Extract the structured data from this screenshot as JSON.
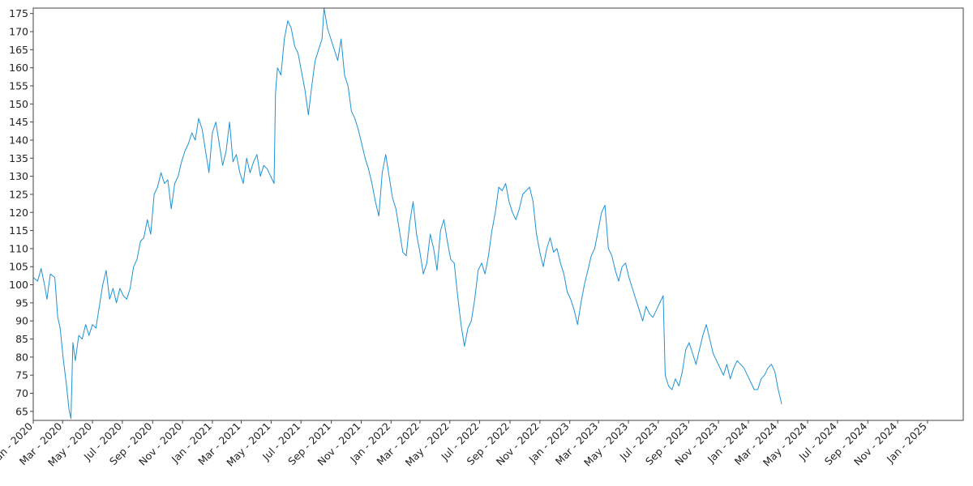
{
  "chart_data": {
    "type": "line",
    "title": "",
    "xlabel": "",
    "ylabel": "",
    "grid": false,
    "legend": "none",
    "xlim": [
      "2020-01-01",
      "2025-03-15"
    ],
    "ylim": [
      62.5,
      176.5
    ],
    "yticks": [
      65,
      70,
      75,
      80,
      85,
      90,
      95,
      100,
      105,
      110,
      115,
      120,
      125,
      130,
      135,
      140,
      145,
      150,
      155,
      160,
      165,
      170,
      175
    ],
    "xticks": [
      {
        "date": "2020-01-01",
        "label": "Jan - 2020"
      },
      {
        "date": "2020-03-01",
        "label": "Mar - 2020"
      },
      {
        "date": "2020-05-01",
        "label": "May - 2020"
      },
      {
        "date": "2020-07-01",
        "label": "Jul - 2020"
      },
      {
        "date": "2020-09-01",
        "label": "Sep - 2020"
      },
      {
        "date": "2020-11-01",
        "label": "Nov - 2020"
      },
      {
        "date": "2021-01-01",
        "label": "Jan - 2021"
      },
      {
        "date": "2021-03-01",
        "label": "Mar - 2021"
      },
      {
        "date": "2021-05-01",
        "label": "May - 2021"
      },
      {
        "date": "2021-07-01",
        "label": "Jul - 2021"
      },
      {
        "date": "2021-09-01",
        "label": "Sep - 2021"
      },
      {
        "date": "2021-11-01",
        "label": "Nov - 2021"
      },
      {
        "date": "2022-01-01",
        "label": "Jan - 2022"
      },
      {
        "date": "2022-03-01",
        "label": "Mar - 2022"
      },
      {
        "date": "2022-05-01",
        "label": "May - 2022"
      },
      {
        "date": "2022-07-01",
        "label": "Jul - 2022"
      },
      {
        "date": "2022-09-01",
        "label": "Sep - 2022"
      },
      {
        "date": "2022-11-01",
        "label": "Nov - 2022"
      },
      {
        "date": "2023-01-01",
        "label": "Jan - 2023"
      },
      {
        "date": "2023-03-01",
        "label": "Mar - 2023"
      },
      {
        "date": "2023-05-01",
        "label": "May - 2023"
      },
      {
        "date": "2023-07-01",
        "label": "Jul - 2023"
      },
      {
        "date": "2023-09-01",
        "label": "Sep - 2023"
      },
      {
        "date": "2023-11-01",
        "label": "Nov - 2023"
      },
      {
        "date": "2024-01-01",
        "label": "Jan - 2024"
      },
      {
        "date": "2024-03-01",
        "label": "Mar - 2024"
      },
      {
        "date": "2024-05-01",
        "label": "May - 2024"
      },
      {
        "date": "2024-07-01",
        "label": "Jul - 2024"
      },
      {
        "date": "2024-09-01",
        "label": "Sep - 2024"
      },
      {
        "date": "2024-11-01",
        "label": "Nov - 2024"
      },
      {
        "date": "2025-01-01",
        "label": "Jan - 2025"
      }
    ],
    "series": [
      {
        "color": "#1f93d6",
        "points": [
          [
            "2020-01-01",
            102.0
          ],
          [
            "2020-01-10",
            101.0
          ],
          [
            "2020-01-17",
            104.5
          ],
          [
            "2020-01-24",
            100.0
          ],
          [
            "2020-01-29",
            96.0
          ],
          [
            "2020-02-05",
            103.0
          ],
          [
            "2020-02-14",
            102.0
          ],
          [
            "2020-02-20",
            91.0
          ],
          [
            "2020-02-25",
            88.0
          ],
          [
            "2020-03-02",
            80.0
          ],
          [
            "2020-03-09",
            72.0
          ],
          [
            "2020-03-14",
            65.5
          ],
          [
            "2020-03-18",
            63.0
          ],
          [
            "2020-03-22",
            84.0
          ],
          [
            "2020-03-27",
            79.0
          ],
          [
            "2020-04-03",
            86.0
          ],
          [
            "2020-04-10",
            85.0
          ],
          [
            "2020-04-17",
            89.0
          ],
          [
            "2020-04-24",
            86.0
          ],
          [
            "2020-05-01",
            89.0
          ],
          [
            "2020-05-08",
            88.0
          ],
          [
            "2020-05-15",
            94.0
          ],
          [
            "2020-05-22",
            100.0
          ],
          [
            "2020-05-29",
            104.0
          ],
          [
            "2020-06-05",
            96.0
          ],
          [
            "2020-06-12",
            99.0
          ],
          [
            "2020-06-19",
            95.0
          ],
          [
            "2020-06-26",
            99.0
          ],
          [
            "2020-07-03",
            97.0
          ],
          [
            "2020-07-10",
            96.0
          ],
          [
            "2020-07-17",
            99.0
          ],
          [
            "2020-07-24",
            105.0
          ],
          [
            "2020-07-31",
            107.0
          ],
          [
            "2020-08-07",
            112.0
          ],
          [
            "2020-08-14",
            113.0
          ],
          [
            "2020-08-21",
            118.0
          ],
          [
            "2020-08-28",
            114.0
          ],
          [
            "2020-09-04",
            125.0
          ],
          [
            "2020-09-11",
            127.0
          ],
          [
            "2020-09-18",
            131.0
          ],
          [
            "2020-09-25",
            128.0
          ],
          [
            "2020-10-02",
            129.0
          ],
          [
            "2020-10-09",
            121.0
          ],
          [
            "2020-10-16",
            128.0
          ],
          [
            "2020-10-23",
            130.0
          ],
          [
            "2020-10-30",
            134.0
          ],
          [
            "2020-11-06",
            137.0
          ],
          [
            "2020-11-13",
            139.0
          ],
          [
            "2020-11-20",
            142.0
          ],
          [
            "2020-11-27",
            140.0
          ],
          [
            "2020-12-04",
            146.0
          ],
          [
            "2020-12-11",
            143.0
          ],
          [
            "2020-12-18",
            137.0
          ],
          [
            "2020-12-25",
            131.0
          ],
          [
            "2021-01-01",
            142.0
          ],
          [
            "2021-01-08",
            145.0
          ],
          [
            "2021-01-15",
            139.0
          ],
          [
            "2021-01-22",
            133.0
          ],
          [
            "2021-01-29",
            137.0
          ],
          [
            "2021-02-05",
            145.0
          ],
          [
            "2021-02-12",
            134.0
          ],
          [
            "2021-02-19",
            136.0
          ],
          [
            "2021-02-26",
            131.0
          ],
          [
            "2021-03-05",
            128.0
          ],
          [
            "2021-03-12",
            135.0
          ],
          [
            "2021-03-19",
            131.0
          ],
          [
            "2021-03-26",
            134.0
          ],
          [
            "2021-04-02",
            136.0
          ],
          [
            "2021-04-09",
            130.0
          ],
          [
            "2021-04-16",
            133.0
          ],
          [
            "2021-04-23",
            132.0
          ],
          [
            "2021-04-30",
            130.0
          ],
          [
            "2021-05-07",
            128.0
          ],
          [
            "2021-05-10",
            153.0
          ],
          [
            "2021-05-14",
            160.0
          ],
          [
            "2021-05-21",
            158.0
          ],
          [
            "2021-05-28",
            168.0
          ],
          [
            "2021-06-04",
            173.0
          ],
          [
            "2021-06-11",
            171.0
          ],
          [
            "2021-06-18",
            166.0
          ],
          [
            "2021-06-25",
            164.0
          ],
          [
            "2021-07-02",
            159.0
          ],
          [
            "2021-07-09",
            154.0
          ],
          [
            "2021-07-16",
            147.0
          ],
          [
            "2021-07-23",
            155.0
          ],
          [
            "2021-07-30",
            162.0
          ],
          [
            "2021-08-06",
            165.0
          ],
          [
            "2021-08-13",
            168.0
          ],
          [
            "2021-08-17",
            176.5
          ],
          [
            "2021-08-24",
            171.0
          ],
          [
            "2021-08-31",
            168.0
          ],
          [
            "2021-09-07",
            165.0
          ],
          [
            "2021-09-14",
            162.0
          ],
          [
            "2021-09-21",
            168.0
          ],
          [
            "2021-09-28",
            158.0
          ],
          [
            "2021-10-05",
            155.0
          ],
          [
            "2021-10-12",
            148.0
          ],
          [
            "2021-10-19",
            146.0
          ],
          [
            "2021-10-26",
            143.0
          ],
          [
            "2021-11-02",
            139.0
          ],
          [
            "2021-11-09",
            135.0
          ],
          [
            "2021-11-16",
            132.0
          ],
          [
            "2021-11-23",
            128.0
          ],
          [
            "2021-11-30",
            123.0
          ],
          [
            "2021-12-07",
            119.0
          ],
          [
            "2021-12-14",
            131.0
          ],
          [
            "2021-12-21",
            136.0
          ],
          [
            "2021-12-28",
            130.0
          ],
          [
            "2022-01-04",
            124.0
          ],
          [
            "2022-01-11",
            121.0
          ],
          [
            "2022-01-18",
            115.0
          ],
          [
            "2022-01-25",
            109.0
          ],
          [
            "2022-02-01",
            108.0
          ],
          [
            "2022-02-08",
            117.0
          ],
          [
            "2022-02-15",
            123.0
          ],
          [
            "2022-02-22",
            114.0
          ],
          [
            "2022-03-01",
            109.0
          ],
          [
            "2022-03-08",
            103.0
          ],
          [
            "2022-03-15",
            106.0
          ],
          [
            "2022-03-22",
            114.0
          ],
          [
            "2022-03-29",
            110.0
          ],
          [
            "2022-04-05",
            104.0
          ],
          [
            "2022-04-12",
            115.0
          ],
          [
            "2022-04-19",
            118.0
          ],
          [
            "2022-04-26",
            112.0
          ],
          [
            "2022-05-03",
            107.0
          ],
          [
            "2022-05-10",
            106.0
          ],
          [
            "2022-05-17",
            97.0
          ],
          [
            "2022-05-24",
            89.0
          ],
          [
            "2022-05-31",
            83.0
          ],
          [
            "2022-06-07",
            88.0
          ],
          [
            "2022-06-14",
            90.0
          ],
          [
            "2022-06-21",
            96.0
          ],
          [
            "2022-06-28",
            104.0
          ],
          [
            "2022-07-05",
            106.0
          ],
          [
            "2022-07-12",
            103.0
          ],
          [
            "2022-07-19",
            108.0
          ],
          [
            "2022-07-26",
            115.0
          ],
          [
            "2022-08-02",
            120.0
          ],
          [
            "2022-08-09",
            127.0
          ],
          [
            "2022-08-16",
            126.0
          ],
          [
            "2022-08-23",
            128.0
          ],
          [
            "2022-08-30",
            123.0
          ],
          [
            "2022-09-06",
            120.0
          ],
          [
            "2022-09-13",
            118.0
          ],
          [
            "2022-09-20",
            121.0
          ],
          [
            "2022-09-27",
            125.0
          ],
          [
            "2022-10-04",
            126.0
          ],
          [
            "2022-10-11",
            127.0
          ],
          [
            "2022-10-18",
            123.0
          ],
          [
            "2022-10-25",
            114.0
          ],
          [
            "2022-11-01",
            109.0
          ],
          [
            "2022-11-08",
            105.0
          ],
          [
            "2022-11-15",
            110.0
          ],
          [
            "2022-11-22",
            113.0
          ],
          [
            "2022-11-29",
            109.0
          ],
          [
            "2022-12-06",
            110.0
          ],
          [
            "2022-12-13",
            106.0
          ],
          [
            "2022-12-20",
            103.0
          ],
          [
            "2022-12-27",
            98.0
          ],
          [
            "2023-01-03",
            96.0
          ],
          [
            "2023-01-10",
            93.0
          ],
          [
            "2023-01-17",
            89.0
          ],
          [
            "2023-01-24",
            95.0
          ],
          [
            "2023-01-31",
            100.0
          ],
          [
            "2023-02-07",
            104.0
          ],
          [
            "2023-02-14",
            108.0
          ],
          [
            "2023-02-21",
            110.0
          ],
          [
            "2023-02-28",
            115.0
          ],
          [
            "2023-03-07",
            120.0
          ],
          [
            "2023-03-14",
            122.0
          ],
          [
            "2023-03-21",
            110.0
          ],
          [
            "2023-03-28",
            108.0
          ],
          [
            "2023-04-04",
            104.0
          ],
          [
            "2023-04-11",
            101.0
          ],
          [
            "2023-04-18",
            105.0
          ],
          [
            "2023-04-25",
            106.0
          ],
          [
            "2023-05-02",
            102.0
          ],
          [
            "2023-05-09",
            99.0
          ],
          [
            "2023-05-16",
            96.0
          ],
          [
            "2023-05-23",
            93.0
          ],
          [
            "2023-05-30",
            90.0
          ],
          [
            "2023-06-06",
            94.0
          ],
          [
            "2023-06-13",
            92.0
          ],
          [
            "2023-06-20",
            91.0
          ],
          [
            "2023-06-27",
            93.0
          ],
          [
            "2023-07-04",
            95.0
          ],
          [
            "2023-07-11",
            97.0
          ],
          [
            "2023-07-15",
            75.0
          ],
          [
            "2023-07-22",
            72.0
          ],
          [
            "2023-07-29",
            71.0
          ],
          [
            "2023-08-05",
            74.0
          ],
          [
            "2023-08-12",
            72.0
          ],
          [
            "2023-08-19",
            76.0
          ],
          [
            "2023-08-26",
            82.0
          ],
          [
            "2023-09-02",
            84.0
          ],
          [
            "2023-09-09",
            81.0
          ],
          [
            "2023-09-16",
            78.0
          ],
          [
            "2023-09-23",
            82.0
          ],
          [
            "2023-09-30",
            86.0
          ],
          [
            "2023-10-07",
            89.0
          ],
          [
            "2023-10-14",
            85.0
          ],
          [
            "2023-10-21",
            81.0
          ],
          [
            "2023-10-28",
            79.0
          ],
          [
            "2023-11-04",
            77.0
          ],
          [
            "2023-11-11",
            75.0
          ],
          [
            "2023-11-18",
            78.0
          ],
          [
            "2023-11-25",
            74.0
          ],
          [
            "2023-12-02",
            77.0
          ],
          [
            "2023-12-09",
            79.0
          ],
          [
            "2023-12-16",
            78.0
          ],
          [
            "2023-12-23",
            77.0
          ],
          [
            "2023-12-30",
            75.0
          ],
          [
            "2024-01-06",
            73.0
          ],
          [
            "2024-01-13",
            71.0
          ],
          [
            "2024-01-20",
            71.0
          ],
          [
            "2024-01-27",
            74.0
          ],
          [
            "2024-02-03",
            75.0
          ],
          [
            "2024-02-10",
            77.0
          ],
          [
            "2024-02-17",
            78.0
          ],
          [
            "2024-02-24",
            76.0
          ],
          [
            "2024-03-02",
            71.0
          ],
          [
            "2024-03-09",
            67.0
          ]
        ]
      }
    ]
  }
}
